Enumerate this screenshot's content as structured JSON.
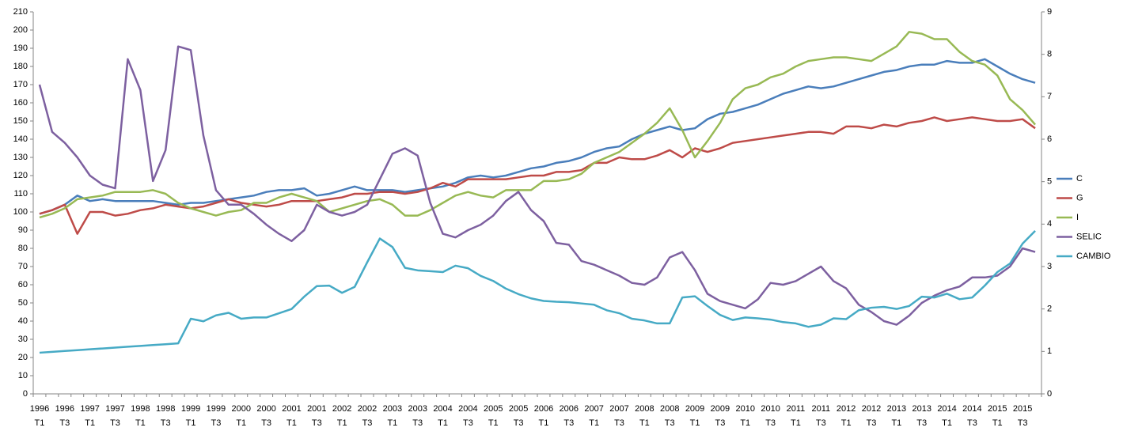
{
  "chart_data": {
    "type": "line",
    "categories": [
      "1996 T1",
      null,
      "1996 T3",
      null,
      "1997 T1",
      null,
      "1997 T3",
      null,
      "1998 T1",
      null,
      "1998 T3",
      null,
      "1999 T1",
      null,
      "1999 T3",
      null,
      "2000 T1",
      null,
      "2000 T3",
      null,
      "2001 T1",
      null,
      "2001 T3",
      null,
      "2002 T1",
      null,
      "2002 T3",
      null,
      "2003 T1",
      null,
      "2003 T3",
      null,
      "2004 T1",
      null,
      "2004 T3",
      null,
      "2005 T1",
      null,
      "2005 T3",
      null,
      "2006 T1",
      null,
      "2006 T3",
      null,
      "2007 T1",
      null,
      "2007 T3",
      null,
      "2008 T1",
      null,
      "2008 T3",
      null,
      "2009 T1",
      null,
      "2009 T3",
      null,
      "2010 T1",
      null,
      "2010 T3",
      null,
      "2011 T1",
      null,
      "2011 T3",
      null,
      "2012 T1",
      null,
      "2012 T3",
      null,
      "2013 T1",
      null,
      "2013 T3",
      null,
      "2014 T1",
      null,
      "2014 T3",
      null,
      "2015 T1",
      null,
      "2015 T3",
      null
    ],
    "ylim": [
      0,
      210
    ],
    "yticks": [
      0,
      10,
      20,
      30,
      40,
      50,
      60,
      70,
      80,
      90,
      100,
      110,
      120,
      130,
      140,
      150,
      160,
      170,
      180,
      190,
      200,
      210
    ],
    "y2lim": [
      0,
      9
    ],
    "y2ticks": [
      0,
      1,
      2,
      3,
      4,
      5,
      6,
      7,
      8,
      9
    ],
    "legend": "right",
    "series": [
      {
        "name": "C",
        "color": "#4a7ebb",
        "values": [
          99,
          101,
          104,
          109,
          106,
          107,
          106,
          106,
          106,
          106,
          105,
          104,
          105,
          105,
          106,
          107,
          108,
          109,
          111,
          112,
          112,
          113,
          109,
          110,
          112,
          114,
          112,
          112,
          112,
          111,
          112,
          113,
          114,
          116,
          119,
          120,
          119,
          120,
          122,
          124,
          125,
          127,
          128,
          130,
          133,
          135,
          136,
          140,
          143,
          145,
          147,
          145,
          146,
          151,
          154,
          155,
          157,
          159,
          162,
          165,
          167,
          169,
          168,
          169,
          171,
          173,
          175,
          177,
          178,
          180,
          181,
          181,
          183,
          182,
          182,
          184,
          180,
          176,
          173,
          171
        ]
      },
      {
        "name": "G",
        "color": "#be4b48",
        "values": [
          99,
          101,
          104,
          88,
          100,
          100,
          98,
          99,
          101,
          102,
          104,
          103,
          102,
          103,
          105,
          107,
          105,
          104,
          103,
          104,
          106,
          106,
          106,
          107,
          108,
          110,
          110,
          111,
          111,
          110,
          111,
          113,
          116,
          114,
          118,
          118,
          118,
          118,
          119,
          120,
          120,
          122,
          122,
          123,
          127,
          127,
          130,
          129,
          129,
          131,
          134,
          130,
          135,
          133,
          135,
          138,
          139,
          140,
          141,
          142,
          143,
          144,
          144,
          143,
          147,
          147,
          146,
          148,
          147,
          149,
          150,
          152,
          150,
          151,
          152,
          151,
          150,
          150,
          151,
          146
        ]
      },
      {
        "name": "I",
        "color": "#98b954",
        "values": [
          97,
          99,
          102,
          107,
          108,
          109,
          111,
          111,
          111,
          112,
          110,
          105,
          102,
          100,
          98,
          100,
          101,
          105,
          105,
          108,
          110,
          108,
          106,
          100,
          102,
          104,
          106,
          107,
          104,
          98,
          98,
          101,
          105,
          109,
          111,
          109,
          108,
          112,
          112,
          112,
          117,
          117,
          118,
          121,
          127,
          130,
          133,
          138,
          143,
          149,
          157,
          145,
          130,
          139,
          149,
          162,
          168,
          170,
          174,
          176,
          180,
          183,
          184,
          185,
          185,
          184,
          183,
          187,
          191,
          199,
          198,
          195,
          195,
          188,
          183,
          181,
          175,
          162,
          156,
          148
        ]
      },
      {
        "name": "SELIC",
        "color": "#7d60a0",
        "values": [
          170,
          144,
          138,
          130,
          120,
          115,
          113,
          184,
          167,
          117,
          134,
          191,
          189,
          142,
          112,
          104,
          104,
          99,
          93,
          88,
          84,
          90,
          104,
          100,
          98,
          100,
          104,
          118,
          132,
          135,
          131,
          105,
          88,
          86,
          90,
          93,
          98,
          106,
          111,
          101,
          95,
          83,
          82,
          73,
          71,
          68,
          65,
          61,
          60,
          64,
          75,
          78,
          68,
          55,
          51,
          49,
          47,
          52,
          61,
          60,
          62,
          66,
          70,
          62,
          58,
          49,
          45,
          40,
          38,
          43,
          50,
          54,
          57,
          59,
          64,
          64,
          65,
          70,
          80,
          78
        ]
      },
      {
        "name": "CAMBIO",
        "color": "#46aac5",
        "axis": "y2",
        "values": [
          0.97,
          0.99,
          1.01,
          1.03,
          1.05,
          1.07,
          1.09,
          1.11,
          1.13,
          1.15,
          1.17,
          1.19,
          1.77,
          1.71,
          1.85,
          1.91,
          1.77,
          1.8,
          1.8,
          1.9,
          2.0,
          2.29,
          2.54,
          2.55,
          2.38,
          2.52,
          3.1,
          3.66,
          3.46,
          2.97,
          2.91,
          2.89,
          2.87,
          3.02,
          2.96,
          2.78,
          2.66,
          2.48,
          2.35,
          2.25,
          2.19,
          2.17,
          2.16,
          2.13,
          2.1,
          1.97,
          1.9,
          1.77,
          1.73,
          1.66,
          1.66,
          2.27,
          2.3,
          2.07,
          1.86,
          1.74,
          1.8,
          1.78,
          1.75,
          1.69,
          1.66,
          1.58,
          1.63,
          1.78,
          1.76,
          1.97,
          2.03,
          2.05,
          2.0,
          2.07,
          2.29,
          2.27,
          2.36,
          2.23,
          2.27,
          2.55,
          2.87,
          3.07,
          3.54,
          3.84
        ]
      }
    ]
  }
}
